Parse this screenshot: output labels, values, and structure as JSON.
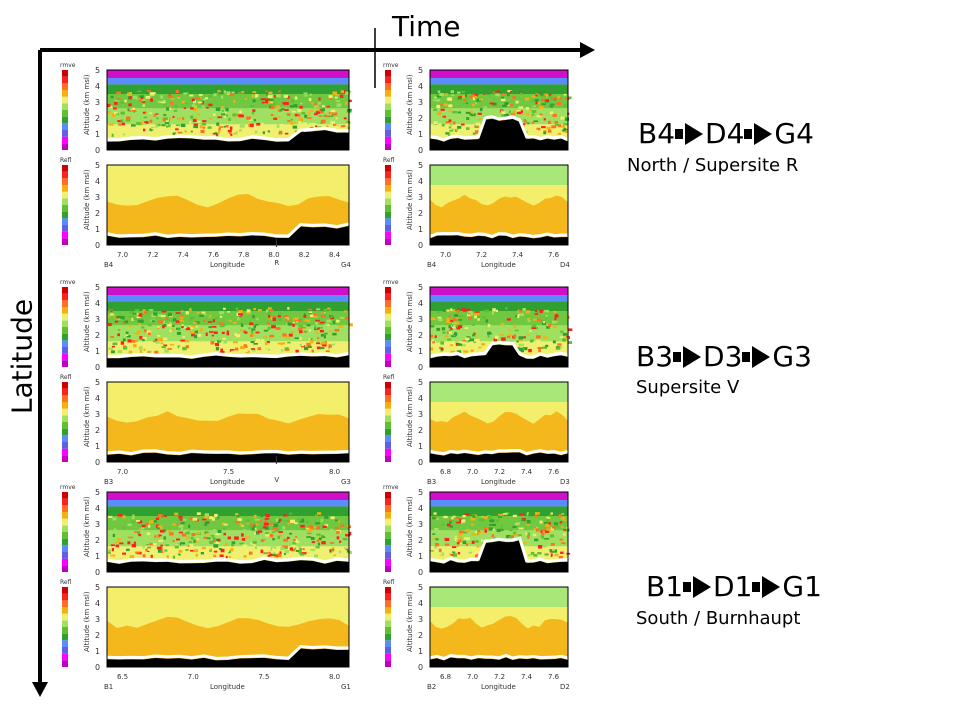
{
  "axes": {
    "time": "Time",
    "latitude": "Latitude"
  },
  "groups": [
    {
      "b": "B4",
      "d": "D4",
      "g": "G4",
      "subtitle": "North / Supersite R"
    },
    {
      "b": "B3",
      "d": "D3",
      "g": "G3",
      "subtitle": "Supersite V"
    },
    {
      "b": "B1",
      "d": "D1",
      "g": "G1",
      "subtitle": "South / Burnhaupt"
    }
  ],
  "panel_text": {
    "rmve": "rmve",
    "refl": "Refl",
    "altitude": "Altitude (km msl)",
    "longitude": "Longitude"
  },
  "pairs": [
    {
      "left": {
        "start": "B4",
        "end": "G4",
        "ticks": [
          "7.0",
          "7.2",
          "7.4",
          "7.6",
          "7.8",
          "8.0",
          "8.2",
          "8.4"
        ],
        "markers": [
          "R"
        ]
      },
      "right": {
        "start": "B4",
        "end": "D4",
        "ticks": [
          "7.0",
          "7.2",
          "7.4",
          "7.6"
        ],
        "markers": []
      }
    },
    {
      "left": {
        "start": "B3",
        "end": "G3",
        "ticks": [
          "7.0",
          "7.5",
          "8.0"
        ],
        "markers": [
          "V"
        ]
      },
      "right": {
        "start": "B3",
        "end": "D3",
        "ticks": [
          "6.8",
          "7.0",
          "7.2",
          "7.4",
          "7.6"
        ],
        "markers": []
      }
    },
    {
      "left": {
        "start": "B1",
        "end": "G1",
        "ticks": [
          "6.5",
          "7.0",
          "7.5",
          "8.0"
        ],
        "markers": []
      },
      "right": {
        "start": "B2",
        "end": "D2",
        "ticks": [
          "6.8",
          "7.0",
          "7.2",
          "7.4",
          "7.6"
        ],
        "markers": []
      }
    }
  ],
  "colors": {
    "rmve_scale": [
      "#c000c0",
      "#ff00ff",
      "#6060e0",
      "#5a8cff",
      "#30a030",
      "#60c030",
      "#a0e060",
      "#f0f070",
      "#f5b010",
      "#ff7020",
      "#ff2020",
      "#d00000"
    ],
    "refl_scale": [
      "#c000c0",
      "#ff00ff",
      "#6060e0",
      "#5a8cff",
      "#30a030",
      "#60c030",
      "#a0e060",
      "#f0f070",
      "#f5b010",
      "#ff7020",
      "#ff2020",
      "#d00000"
    ]
  }
}
